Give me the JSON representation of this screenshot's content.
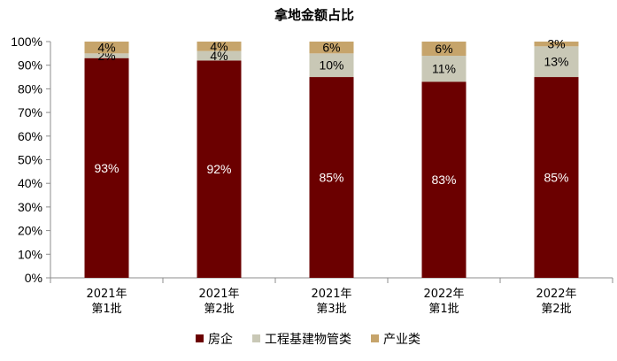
{
  "chart_data": {
    "type": "bar",
    "stacked": true,
    "title": "拿地金额占比",
    "categories": [
      [
        "2021年",
        "第1批"
      ],
      [
        "2021年",
        "第2批"
      ],
      [
        "2021年",
        "第3批"
      ],
      [
        "2022年",
        "第1批"
      ],
      [
        "2022年",
        "第2批"
      ]
    ],
    "series": [
      {
        "name": "房企",
        "values": [
          93,
          92,
          85,
          83,
          85
        ],
        "labels": [
          "93%",
          "92%",
          "85%",
          "83%",
          "85%"
        ],
        "color": "#6b0000",
        "label_color": "#ffffff"
      },
      {
        "name": "工程基建物管类",
        "values": [
          2,
          4,
          10,
          11,
          13
        ],
        "labels": [
          "2%",
          "4%",
          "10%",
          "11%",
          "13%"
        ],
        "color": "#c9c8b6",
        "label_color": "#000000"
      },
      {
        "name": "产业类",
        "values": [
          4,
          4,
          6,
          6,
          3
        ],
        "labels": [
          "4%",
          "4%",
          "6%",
          "6%",
          "3%"
        ],
        "color": "#c6a46b",
        "label_color": "#000000"
      }
    ],
    "y_ticks": [
      "0%",
      "10%",
      "20%",
      "30%",
      "40%",
      "50%",
      "60%",
      "70%",
      "80%",
      "90%",
      "100%"
    ],
    "ylim": [
      0,
      100
    ],
    "xlabel": "",
    "ylabel": "",
    "grid": false,
    "legend_position": "bottom"
  }
}
